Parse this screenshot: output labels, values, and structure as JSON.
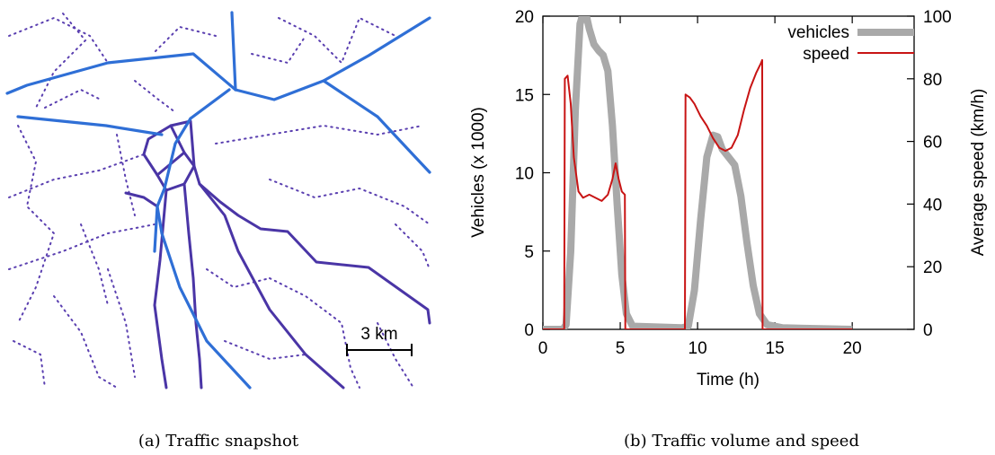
{
  "panel_a": {
    "caption": "(a) Traffic snapshot",
    "scale_label": "3 km",
    "colors": {
      "highway": "#2f6fd6",
      "arterial": "#4a35a6",
      "minor": "#5a3fb0"
    }
  },
  "panel_b": {
    "caption": "(b) Traffic volume and speed"
  },
  "chart_data": {
    "type": "line",
    "xlabel": "Time (h)",
    "ylabel": "Vehicles (x 1000)",
    "y2label": "Average speed (km/h)",
    "xlim": [
      0,
      24
    ],
    "ylim": [
      0,
      20
    ],
    "y2lim": [
      0,
      100
    ],
    "x_ticks": [
      "0",
      "5",
      "10",
      "15",
      "20"
    ],
    "y_ticks": [
      "0",
      "5",
      "10",
      "15",
      "20"
    ],
    "y2_ticks": [
      "0",
      "20",
      "40",
      "60",
      "80",
      "100"
    ],
    "legend_position": "top-right",
    "series": [
      {
        "name": "vehicles",
        "axis": "left",
        "color": "#a9a9a9",
        "points": [
          [
            0,
            0
          ],
          [
            1.3,
            0
          ],
          [
            1.5,
            0.3
          ],
          [
            1.8,
            5
          ],
          [
            2.1,
            14
          ],
          [
            2.4,
            19.5
          ],
          [
            2.7,
            20.5
          ],
          [
            3.0,
            19.2
          ],
          [
            3.3,
            18.2
          ],
          [
            3.6,
            17.8
          ],
          [
            3.9,
            17.5
          ],
          [
            4.2,
            16.5
          ],
          [
            4.5,
            13
          ],
          [
            4.8,
            8
          ],
          [
            5.1,
            3.5
          ],
          [
            5.4,
            1
          ],
          [
            5.8,
            0.2
          ],
          [
            9.0,
            0.1
          ],
          [
            9.4,
            0.2
          ],
          [
            9.8,
            2.5
          ],
          [
            10.2,
            7
          ],
          [
            10.6,
            11
          ],
          [
            11.0,
            12.4
          ],
          [
            11.3,
            12.3
          ],
          [
            11.6,
            11.5
          ],
          [
            12.0,
            11
          ],
          [
            12.4,
            10.5
          ],
          [
            12.8,
            8.5
          ],
          [
            13.2,
            5.5
          ],
          [
            13.6,
            2.8
          ],
          [
            14.0,
            1
          ],
          [
            14.5,
            0.3
          ],
          [
            15.5,
            0.1
          ],
          [
            20,
            0
          ]
        ]
      },
      {
        "name": "speed",
        "axis": "right",
        "color": "#c81414",
        "points": [
          [
            0,
            0
          ],
          [
            1.38,
            0
          ],
          [
            1.42,
            80
          ],
          [
            1.6,
            81
          ],
          [
            1.8,
            72
          ],
          [
            2.0,
            55
          ],
          [
            2.3,
            44
          ],
          [
            2.6,
            42
          ],
          [
            3.0,
            43
          ],
          [
            3.4,
            42
          ],
          [
            3.8,
            41
          ],
          [
            4.2,
            43
          ],
          [
            4.5,
            48
          ],
          [
            4.7,
            53
          ],
          [
            4.9,
            48
          ],
          [
            5.1,
            44
          ],
          [
            5.3,
            43
          ],
          [
            5.33,
            0
          ],
          [
            9.18,
            0
          ],
          [
            9.22,
            75
          ],
          [
            9.5,
            74
          ],
          [
            9.8,
            72
          ],
          [
            10.2,
            68
          ],
          [
            10.6,
            65
          ],
          [
            11.0,
            61
          ],
          [
            11.4,
            58
          ],
          [
            11.8,
            57
          ],
          [
            12.2,
            58
          ],
          [
            12.6,
            62
          ],
          [
            13.0,
            70
          ],
          [
            13.4,
            77
          ],
          [
            13.8,
            82
          ],
          [
            14.1,
            85
          ],
          [
            14.18,
            86
          ],
          [
            14.2,
            0
          ],
          [
            20,
            0
          ]
        ]
      }
    ]
  }
}
